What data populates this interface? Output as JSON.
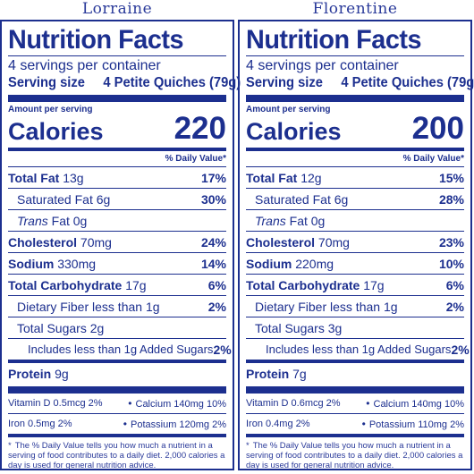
{
  "panels": [
    {
      "variant": "Lorraine",
      "title": "Nutrition Facts",
      "servings_per_container": "4 servings per container",
      "serving_size_label": "Serving size",
      "serving_size_value": "4 Petite Quiches (79g)",
      "amount_per_serving": "Amount per serving",
      "calories_label": "Calories",
      "calories_value": "220",
      "daily_value_header": "% Daily Value*",
      "nutrients": [
        {
          "name": "Total Fat",
          "amount": "13g",
          "dv": "17%"
        },
        {
          "name": "Saturated Fat",
          "amount": "6g",
          "dv": "30%"
        },
        {
          "name": "Trans",
          "suffix": "Fat",
          "amount": "0g",
          "dv": ""
        },
        {
          "name": "Cholesterol",
          "amount": "70mg",
          "dv": "24%"
        },
        {
          "name": "Sodium",
          "amount": "330mg",
          "dv": "14%"
        },
        {
          "name": "Total Carbohydrate",
          "amount": "17g",
          "dv": "6%"
        },
        {
          "name": "Dietary Fiber less than",
          "amount": "1g",
          "dv": "2%"
        },
        {
          "name": "Total Sugars",
          "amount": "2g",
          "dv": ""
        },
        {
          "name": "Includes less than 1g Added Sugars",
          "amount": "",
          "dv": "2%"
        },
        {
          "name": "Protein",
          "amount": "9g",
          "dv": ""
        }
      ],
      "micros": [
        {
          "left": "Vitamin D 0.5mcg 2%",
          "right": "Calcium 140mg 10%"
        },
        {
          "left": "Iron 0.5mg 2%",
          "right": "Potassium 120mg 2%"
        }
      ],
      "footnote": "The % Daily Value tells you how much a nutrient in a serving of food contributes to a daily diet. 2,000 calories a day is used for general nutrition advice."
    },
    {
      "variant": "Florentine",
      "title": "Nutrition Facts",
      "servings_per_container": "4 servings per container",
      "serving_size_label": "Serving size",
      "serving_size_value": "4 Petite Quiches (79g)",
      "amount_per_serving": "Amount per serving",
      "calories_label": "Calories",
      "calories_value": "200",
      "daily_value_header": "% Daily Value*",
      "nutrients": [
        {
          "name": "Total Fat",
          "amount": "12g",
          "dv": "15%"
        },
        {
          "name": "Saturated Fat",
          "amount": "6g",
          "dv": "28%"
        },
        {
          "name": "Trans",
          "suffix": "Fat",
          "amount": "0g",
          "dv": ""
        },
        {
          "name": "Cholesterol",
          "amount": "70mg",
          "dv": "23%"
        },
        {
          "name": "Sodium",
          "amount": "220mg",
          "dv": "10%"
        },
        {
          "name": "Total Carbohydrate",
          "amount": "17g",
          "dv": "6%"
        },
        {
          "name": "Dietary Fiber less than",
          "amount": "1g",
          "dv": "2%"
        },
        {
          "name": "Total Sugars",
          "amount": "3g",
          "dv": ""
        },
        {
          "name": "Includes less than 1g Added Sugars",
          "amount": "",
          "dv": "2%"
        },
        {
          "name": "Protein",
          "amount": "7g",
          "dv": ""
        }
      ],
      "micros": [
        {
          "left": "Vitamin D 0.6mcg 2%",
          "right": "Calcium 140mg 10%"
        },
        {
          "left": "Iron 0.4mg 2%",
          "right": "Potassium 110mg 2%"
        }
      ],
      "footnote": "The % Daily Value tells you how much a nutrient in a serving of food contributes to a daily diet. 2,000 calories a day is used for general nutrition advice."
    }
  ],
  "colors": {
    "ink": "#1c2f8f",
    "background": "#ffffff"
  }
}
